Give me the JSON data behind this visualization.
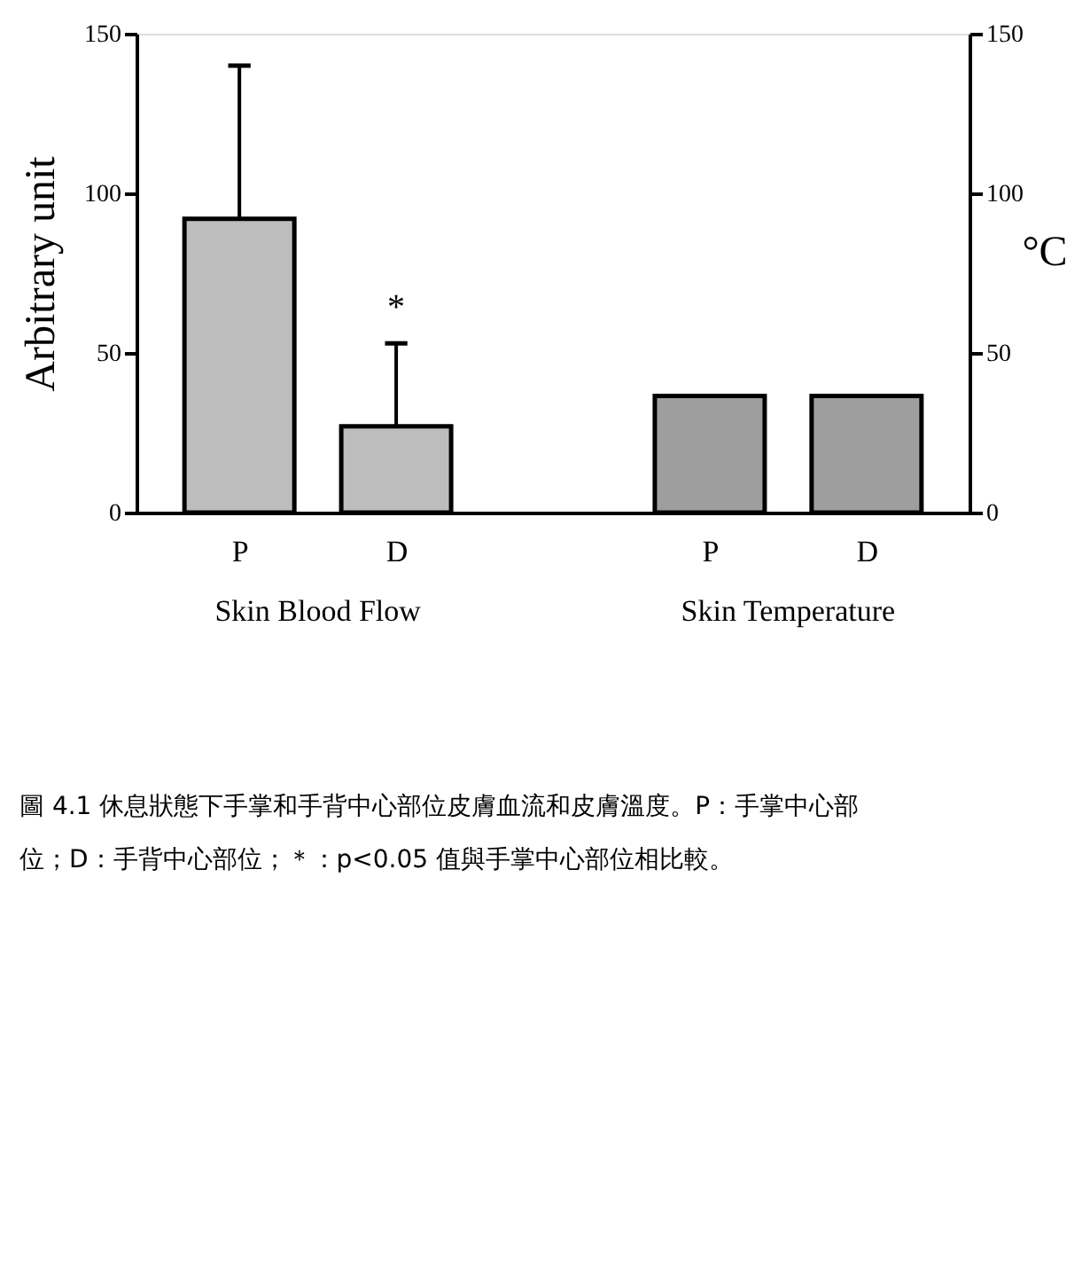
{
  "chart_data": {
    "type": "bar",
    "categories": [
      "P",
      "D",
      null,
      "P",
      "D"
    ],
    "series": [
      {
        "name": "Skin Blood Flow",
        "color": "#bdbdbd",
        "values": [
          92,
          27,
          null,
          null,
          null
        ],
        "errors": [
          [
            92,
            140
          ],
          [
            27,
            53
          ],
          null,
          null,
          null
        ],
        "value_labels": [
          null,
          "*",
          null,
          null,
          null
        ]
      },
      {
        "name": "Skin Temperature",
        "color": "#9e9e9e",
        "axis": "y2",
        "values": [
          null,
          null,
          null,
          36.5,
          36.5
        ]
      }
    ],
    "ylabel": "Arbitrary unit",
    "y2label": "°C",
    "ylim": [
      0,
      150
    ],
    "yticks": [
      0,
      50,
      100,
      150
    ],
    "y2lim": [
      0,
      150
    ],
    "y2ticks": [
      0,
      50,
      100,
      150
    ],
    "grid": false,
    "annotations": [
      "圖 4.1 休息狀態下手掌和手背中心部位皮膚血流和皮膚溫度。P：手掌中心部位；D：手背中心部位；＊：p<0.05 值與手掌中心部位相比較。"
    ]
  }
}
